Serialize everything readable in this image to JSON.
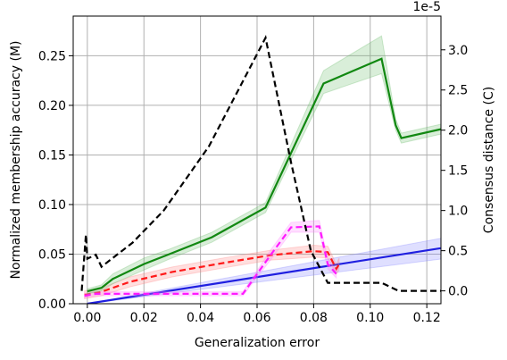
{
  "chart_data": {
    "type": "line",
    "xlabel": "Generalization error",
    "ylabel": "Normalized membership accuracy (M)",
    "y2label": "Consensus distance (C)",
    "y2_offset_label": "1e-5",
    "xlim": [
      -0.005,
      0.125
    ],
    "xticks": [
      {
        "value": 0,
        "label": "0.00"
      },
      0.02,
      0.04,
      0.06,
      0.08,
      {
        "value": 0.1,
        "label": "0.10"
      },
      0.12
    ],
    "ylim": [
      0,
      0.29
    ],
    "yticks": [
      {
        "value": 0,
        "label": "0.00"
      },
      0.05,
      {
        "value": 0.1,
        "label": "0.10"
      },
      0.15,
      {
        "value": 0.2,
        "label": "0.20"
      },
      0.25
    ],
    "y2lim": [
      -0.16,
      3.42
    ],
    "y2ticks": [
      {
        "value": 0,
        "label": "0.0"
      },
      0.5,
      {
        "value": 1,
        "label": "1.0"
      },
      1.5,
      {
        "value": 2,
        "label": "2.0"
      },
      2.5,
      {
        "value": 3,
        "label": "3.0"
      }
    ],
    "grid": true,
    "series": [
      {
        "color": "#1f1fe0",
        "style": "solid",
        "x": [
          0,
          0.125
        ],
        "values": [
          0,
          0.056
        ],
        "lower": [
          0,
          0.045
        ],
        "upper": [
          0,
          0.066
        ],
        "band_color": "#8080ff"
      },
      {
        "color": "#ff1a1a",
        "style": "dashed",
        "x": [
          -0.001,
          0.005,
          0.015,
          0.03,
          0.05,
          0.065,
          0.08,
          0.085,
          0.088,
          0.089
        ],
        "values": [
          0.009,
          0.012,
          0.022,
          0.032,
          0.042,
          0.049,
          0.053,
          0.052,
          0.035,
          0.04
        ],
        "lower": [
          0.005,
          0.008,
          0.017,
          0.027,
          0.037,
          0.044,
          0.047,
          0.046,
          0.03,
          0.034
        ],
        "upper": [
          0.013,
          0.016,
          0.027,
          0.037,
          0.047,
          0.054,
          0.059,
          0.058,
          0.04,
          0.046
        ],
        "band_color": "#ff8080"
      },
      {
        "color": "#ff1aff",
        "style": "dashed",
        "x": [
          -0.001,
          0.003,
          0.055,
          0.065,
          0.072,
          0.082,
          0.085,
          0.088
        ],
        "values": [
          0.008,
          0.01,
          0.01,
          0.05,
          0.077,
          0.078,
          0.04,
          0.03
        ],
        "lower": [
          0.006,
          0.008,
          0.008,
          0.045,
          0.072,
          0.072,
          0.035,
          0.026
        ],
        "upper": [
          0.01,
          0.012,
          0.012,
          0.055,
          0.082,
          0.084,
          0.045,
          0.034
        ],
        "band_color": "#ff80ff"
      },
      {
        "color": "#118811",
        "style": "solid",
        "x": [
          0,
          0.005,
          0.009,
          0.02,
          0.029,
          0.044,
          0.063,
          0.0835,
          0.104,
          0.109,
          0.111,
          0.125
        ],
        "values": [
          0.0126,
          0.016,
          0.025,
          0.04,
          0.05,
          0.067,
          0.097,
          0.222,
          0.247,
          0.18,
          0.167,
          0.176
        ],
        "lower": [
          0.01,
          0.013,
          0.02,
          0.034,
          0.045,
          0.062,
          0.092,
          0.212,
          0.232,
          0.175,
          0.162,
          0.171
        ],
        "upper": [
          0.015,
          0.019,
          0.03,
          0.046,
          0.055,
          0.072,
          0.102,
          0.235,
          0.27,
          0.186,
          0.172,
          0.181
        ],
        "band_color": "#66bb66"
      },
      {
        "color": "#000000",
        "style": "dashed",
        "axis": "y2",
        "x": [
          -0.002,
          -0.0005,
          0,
          0.003,
          0.005,
          0.016,
          0.027,
          0.043,
          0.063,
          0.072,
          0.079,
          0.085,
          0.104,
          0.11,
          0.125
        ],
        "values": [
          0,
          0.7,
          0.4,
          0.45,
          0.3,
          0.6,
          1.0,
          1.8,
          3.15,
          1.6,
          0.5,
          0.1,
          0.1,
          0,
          0
        ]
      }
    ]
  }
}
